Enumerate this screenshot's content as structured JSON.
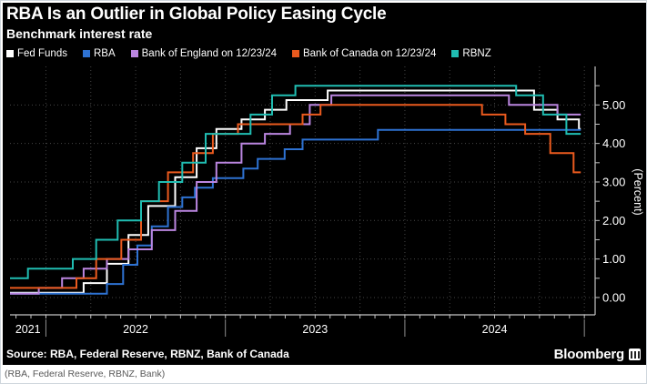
{
  "header": {
    "title": "RBA Is an Outlier in Global Policy Easing Cycle",
    "subtitle": "Benchmark interest rate"
  },
  "source_bar": {
    "source": "Source: RBA, Federal Reserve, RBNZ, Bank of Canada",
    "brand": "Bloomberg"
  },
  "page": {
    "caption": "(RBA, Federal Reserve, RBNZ, Bank)"
  },
  "colors": {
    "background": "#000000",
    "grid": "#454545",
    "axis": "#c4c4c4",
    "text": "#ffffff"
  },
  "chart_data": {
    "type": "line",
    "step": true,
    "title": "RBA Is an Outlier in Global Policy Easing Cycle",
    "subtitle": "Benchmark interest rate",
    "ylabel": "(Percent)",
    "legend_position": "top",
    "grid": "dotted",
    "x_domain": [
      2021.8,
      2025.06
    ],
    "y_domain": [
      -0.45,
      6.0
    ],
    "end_x": 2024.98,
    "y_ticks_labeled": [
      0,
      1,
      2,
      3,
      4,
      5
    ],
    "y_tick_labels": [
      "0.00",
      "1.00",
      "2.00",
      "3.00",
      "4.00",
      "5.00"
    ],
    "y_minor_step": 0.5,
    "y_minor_max": 5.5,
    "x_gridline_step": 0.25,
    "x_minor_step_months": 1,
    "x_year_boundaries": [
      2022,
      2023,
      2024,
      2025
    ],
    "x_year_labels": [
      {
        "label": "2021",
        "center": 2021.9
      },
      {
        "label": "2022",
        "center": 2022.5
      },
      {
        "label": "2023",
        "center": 2023.5
      },
      {
        "label": "2024",
        "center": 2024.5
      }
    ],
    "series": [
      {
        "id": "fed-funds",
        "name": "Fed Funds",
        "color": "#ffffff",
        "points": [
          [
            2021.8,
            0.125
          ],
          [
            2022.21,
            0.375
          ],
          [
            2022.34,
            0.875
          ],
          [
            2022.46,
            1.625
          ],
          [
            2022.57,
            2.375
          ],
          [
            2022.72,
            3.125
          ],
          [
            2022.84,
            3.875
          ],
          [
            2022.95,
            4.375
          ],
          [
            2023.09,
            4.625
          ],
          [
            2023.22,
            4.875
          ],
          [
            2023.34,
            5.125
          ],
          [
            2023.57,
            5.375
          ],
          [
            2024.72,
            4.875
          ],
          [
            2024.85,
            4.625
          ],
          [
            2024.97,
            4.375
          ]
        ]
      },
      {
        "id": "rba",
        "name": "RBA",
        "color": "#2e72d2",
        "points": [
          [
            2021.8,
            0.1
          ],
          [
            2022.34,
            0.35
          ],
          [
            2022.43,
            0.85
          ],
          [
            2022.51,
            1.35
          ],
          [
            2022.59,
            1.85
          ],
          [
            2022.68,
            2.35
          ],
          [
            2022.76,
            2.6
          ],
          [
            2022.83,
            2.85
          ],
          [
            2022.93,
            3.1
          ],
          [
            2023.1,
            3.35
          ],
          [
            2023.18,
            3.6
          ],
          [
            2023.33,
            3.85
          ],
          [
            2023.43,
            4.1
          ],
          [
            2023.85,
            4.35
          ]
        ]
      },
      {
        "id": "bank-of-england",
        "name": "Bank of England on 12/23/24",
        "color": "#bb86e0",
        "points": [
          [
            2021.8,
            0.1
          ],
          [
            2021.96,
            0.25
          ],
          [
            2022.09,
            0.5
          ],
          [
            2022.21,
            0.75
          ],
          [
            2022.34,
            1.0
          ],
          [
            2022.46,
            1.25
          ],
          [
            2022.59,
            1.75
          ],
          [
            2022.72,
            2.25
          ],
          [
            2022.84,
            3.0
          ],
          [
            2022.95,
            3.5
          ],
          [
            2023.09,
            4.0
          ],
          [
            2023.22,
            4.25
          ],
          [
            2023.36,
            4.5
          ],
          [
            2023.47,
            5.0
          ],
          [
            2023.59,
            5.25
          ],
          [
            2024.58,
            5.0
          ],
          [
            2024.85,
            4.75
          ]
        ]
      },
      {
        "id": "bank-of-canada",
        "name": "Bank of Canada on 12/23/24",
        "color": "#ea5a1e",
        "points": [
          [
            2021.8,
            0.25
          ],
          [
            2022.17,
            0.5
          ],
          [
            2022.28,
            1.0
          ],
          [
            2022.42,
            1.5
          ],
          [
            2022.53,
            2.5
          ],
          [
            2022.68,
            3.25
          ],
          [
            2022.82,
            3.75
          ],
          [
            2022.93,
            4.25
          ],
          [
            2023.07,
            4.5
          ],
          [
            2023.43,
            4.75
          ],
          [
            2023.53,
            5.0
          ],
          [
            2024.43,
            4.75
          ],
          [
            2024.56,
            4.5
          ],
          [
            2024.67,
            4.25
          ],
          [
            2024.81,
            3.75
          ],
          [
            2024.94,
            3.25
          ]
        ]
      },
      {
        "id": "rbnz",
        "name": "RBNZ",
        "color": "#20bdb2",
        "points": [
          [
            2021.8,
            0.5
          ],
          [
            2021.9,
            0.75
          ],
          [
            2022.15,
            1.0
          ],
          [
            2022.28,
            1.5
          ],
          [
            2022.4,
            2.0
          ],
          [
            2022.53,
            2.5
          ],
          [
            2022.63,
            3.0
          ],
          [
            2022.76,
            3.5
          ],
          [
            2022.89,
            4.25
          ],
          [
            2023.14,
            4.75
          ],
          [
            2023.26,
            5.25
          ],
          [
            2023.39,
            5.5
          ],
          [
            2024.62,
            5.25
          ],
          [
            2024.77,
            4.75
          ],
          [
            2024.9,
            4.25
          ]
        ]
      }
    ]
  }
}
